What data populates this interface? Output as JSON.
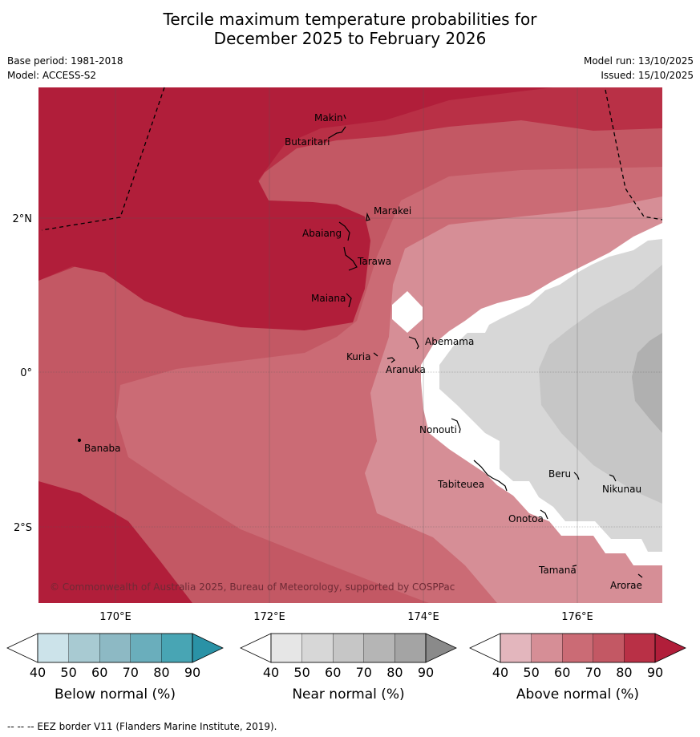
{
  "title_line1": "Tercile maximum temperature probabilities for",
  "title_line2": "December 2025 to February 2026",
  "meta": {
    "base_period": "Base period: 1981-2018",
    "model": "Model: ACCESS-S2",
    "model_run": "Model run: 13/10/2025",
    "issued": "Issued: 15/10/2025"
  },
  "axes": {
    "x_ticks": [
      "170°E",
      "172°E",
      "174°E",
      "176°E"
    ],
    "y_ticks": [
      "2°N",
      "0°",
      "2°S"
    ]
  },
  "places": [
    {
      "name": "Makin"
    },
    {
      "name": "Butaritari"
    },
    {
      "name": "Marakei"
    },
    {
      "name": "Abaiang"
    },
    {
      "name": "Tarawa"
    },
    {
      "name": "Maiana"
    },
    {
      "name": "Abemama"
    },
    {
      "name": "Kuria"
    },
    {
      "name": "Aranuka"
    },
    {
      "name": "Banaba"
    },
    {
      "name": "Nonouti"
    },
    {
      "name": "Tabiteuea"
    },
    {
      "name": "Beru"
    },
    {
      "name": "Nikunau"
    },
    {
      "name": "Onotoa"
    },
    {
      "name": "Tamana"
    },
    {
      "name": "Arorae"
    }
  ],
  "copyright": "© Commonwealth of Australia 2025, Bureau of Meteorology, supported by COSPPac",
  "colorbars": [
    {
      "label": "Below normal (%)",
      "ticks": [
        "40",
        "50",
        "60",
        "70",
        "80",
        "90"
      ],
      "colors": [
        "#ffffff",
        "#cce3ea",
        "#a8cad2",
        "#8db9c4",
        "#6aaebc",
        "#48a5b4",
        "#2a92a6"
      ]
    },
    {
      "label": "Near normal (%)",
      "ticks": [
        "40",
        "50",
        "60",
        "70",
        "80",
        "90"
      ],
      "colors": [
        "#ffffff",
        "#e6e6e6",
        "#d7d7d7",
        "#c6c6c6",
        "#b5b5b5",
        "#a4a4a4",
        "#8a8a8a"
      ]
    },
    {
      "label": "Above normal (%)",
      "ticks": [
        "40",
        "50",
        "60",
        "70",
        "80",
        "90"
      ],
      "colors": [
        "#ffffff",
        "#e3b6bd",
        "#d68e96",
        "#cb6b75",
        "#c35864",
        "#b93046",
        "#b11e3a"
      ]
    }
  ],
  "footer": "--  --  -- EEZ border V11 (Flanders Marine Institute, 2019)."
}
